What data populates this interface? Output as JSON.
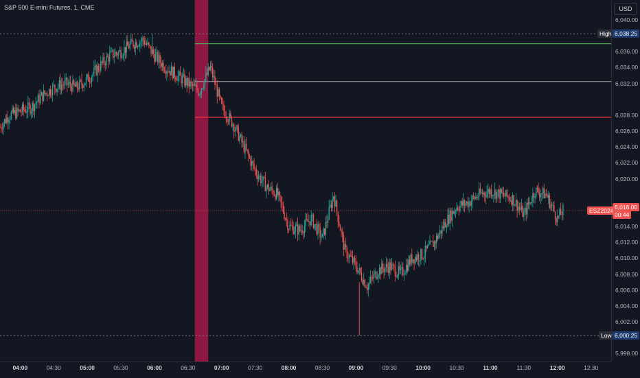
{
  "chart": {
    "title": "S&P 500 E-mini Futures, 1, CME",
    "currency": "USD",
    "price_ticks": [
      "6,040.00",
      "6,036.00",
      "6,034.00",
      "6,032.00",
      "6,028.00",
      "6,026.00",
      "6,024.00",
      "6,022.00",
      "6,020.00",
      "6,014.00",
      "6,012.00",
      "6,010.00",
      "6,008.00",
      "6,006.00",
      "6,004.00",
      "6,002.00",
      "5,998.00"
    ],
    "time_ticks": [
      {
        "label": "04:00",
        "bold": true
      },
      {
        "label": "04:30",
        "bold": false
      },
      {
        "label": "05:00",
        "bold": true
      },
      {
        "label": "05:30",
        "bold": false
      },
      {
        "label": "06:00",
        "bold": true
      },
      {
        "label": "06:30",
        "bold": false
      },
      {
        "label": "07:00",
        "bold": true
      },
      {
        "label": "07:30",
        "bold": false
      },
      {
        "label": "08:00",
        "bold": true
      },
      {
        "label": "08:30",
        "bold": false
      },
      {
        "label": "09:00",
        "bold": true
      },
      {
        "label": "09:30",
        "bold": false
      },
      {
        "label": "10:00",
        "bold": true
      },
      {
        "label": "10:30",
        "bold": false
      },
      {
        "label": "11:00",
        "bold": true
      },
      {
        "label": "11:30",
        "bold": false
      },
      {
        "label": "12:00",
        "bold": true
      },
      {
        "label": "12:30",
        "bold": false
      }
    ],
    "high": {
      "label": "High",
      "price": "6,038.25",
      "value": 6038.25
    },
    "low": {
      "label": "Low",
      "price": "6,000.25",
      "value": 6000.25
    },
    "current": {
      "symbol": "ESZ2024",
      "price": "6,016.00",
      "value": 6016.0,
      "countdown": "00:44"
    },
    "levels": [
      {
        "value": 6037.0,
        "color": "#4caf50"
      },
      {
        "value": 6032.25,
        "color": "#9598a1"
      },
      {
        "value": 6027.75,
        "color": "#f23645"
      }
    ],
    "highlight_zone": {
      "start_time": "06:36",
      "end_time": "06:48",
      "color": "#a31a48"
    },
    "colors": {
      "up": "#26a69a",
      "down": "#ef5350",
      "background": "#131722"
    }
  },
  "chart_data": {
    "type": "candlestick",
    "title": "S&P 500 E-mini Futures, 1, CME",
    "x_range": [
      "03:42",
      "12:48"
    ],
    "y_range": [
      5997.0,
      6042.5
    ],
    "x": [
      "03:42",
      "03:50",
      "04:00",
      "04:10",
      "04:20",
      "04:30",
      "04:40",
      "04:50",
      "05:00",
      "05:10",
      "05:20",
      "05:30",
      "05:40",
      "05:50",
      "06:00",
      "06:10",
      "06:20",
      "06:30",
      "06:40",
      "06:50",
      "07:00",
      "07:10",
      "07:20",
      "07:30",
      "07:40",
      "07:50",
      "08:00",
      "08:10",
      "08:20",
      "08:30",
      "08:40",
      "08:50",
      "09:00",
      "09:10",
      "09:20",
      "09:30",
      "09:40",
      "09:50",
      "10:00",
      "10:10",
      "10:20",
      "10:30",
      "10:40",
      "10:50",
      "11:00",
      "11:10",
      "11:20",
      "11:30",
      "11:40",
      "11:50",
      "12:00",
      "12:05"
    ],
    "price": [
      6026.5,
      6028.0,
      6028.5,
      6029.0,
      6030.5,
      6031.5,
      6032.0,
      6031.5,
      6032.5,
      6034.0,
      6035.5,
      6036.0,
      6037.0,
      6037.5,
      6035.5,
      6034.0,
      6033.0,
      6032.0,
      6031.0,
      6034.0,
      6029.0,
      6027.0,
      6024.0,
      6021.0,
      6019.0,
      6018.0,
      6014.0,
      6013.5,
      6015.0,
      6012.5,
      6018.0,
      6011.0,
      6009.0,
      6006.5,
      6008.5,
      6009.0,
      6008.0,
      6010.0,
      6010.5,
      6012.0,
      6014.5,
      6016.5,
      6017.0,
      6018.0,
      6018.5,
      6018.0,
      6017.5,
      6015.5,
      6018.5,
      6018.0,
      6015.0,
      6016.0
    ],
    "high": 6038.25,
    "low": 6000.25,
    "last": 6016.0,
    "horizontal_levels": [
      6037.0,
      6032.25,
      6027.75
    ],
    "grid": false
  }
}
